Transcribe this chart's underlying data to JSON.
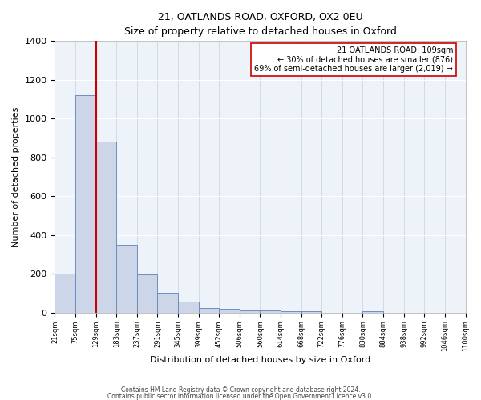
{
  "title": "21, OATLANDS ROAD, OXFORD, OX2 0EU",
  "subtitle": "Size of property relative to detached houses in Oxford",
  "xlabel": "Distribution of detached houses by size in Oxford",
  "ylabel": "Number of detached properties",
  "bin_labels": [
    "21sqm",
    "75sqm",
    "129sqm",
    "183sqm",
    "237sqm",
    "291sqm",
    "345sqm",
    "399sqm",
    "452sqm",
    "506sqm",
    "560sqm",
    "614sqm",
    "668sqm",
    "722sqm",
    "776sqm",
    "830sqm",
    "884sqm",
    "938sqm",
    "992sqm",
    "1046sqm",
    "1100sqm"
  ],
  "counts": [
    200,
    1120,
    880,
    350,
    195,
    100,
    55,
    25,
    18,
    12,
    12,
    8,
    8,
    0,
    0,
    8,
    0,
    0,
    0,
    0
  ],
  "vline_position": 2,
  "annotation_line1": "21 OATLANDS ROAD: 109sqm",
  "annotation_line2": "← 30% of detached houses are smaller (876)",
  "annotation_line3": "69% of semi-detached houses are larger (2,019) →",
  "bar_facecolor": "#ccd6e8",
  "bar_edgecolor": "#6a8fbf",
  "vline_color": "#cc0000",
  "annotation_box_edgecolor": "#cc0000",
  "background_color": "#eef2f9",
  "ylim": [
    0,
    1400
  ],
  "yticks": [
    0,
    200,
    400,
    600,
    800,
    1000,
    1200,
    1400
  ],
  "footnote1": "Contains HM Land Registry data © Crown copyright and database right 2024.",
  "footnote2": "Contains public sector information licensed under the Open Government Licence v3.0."
}
